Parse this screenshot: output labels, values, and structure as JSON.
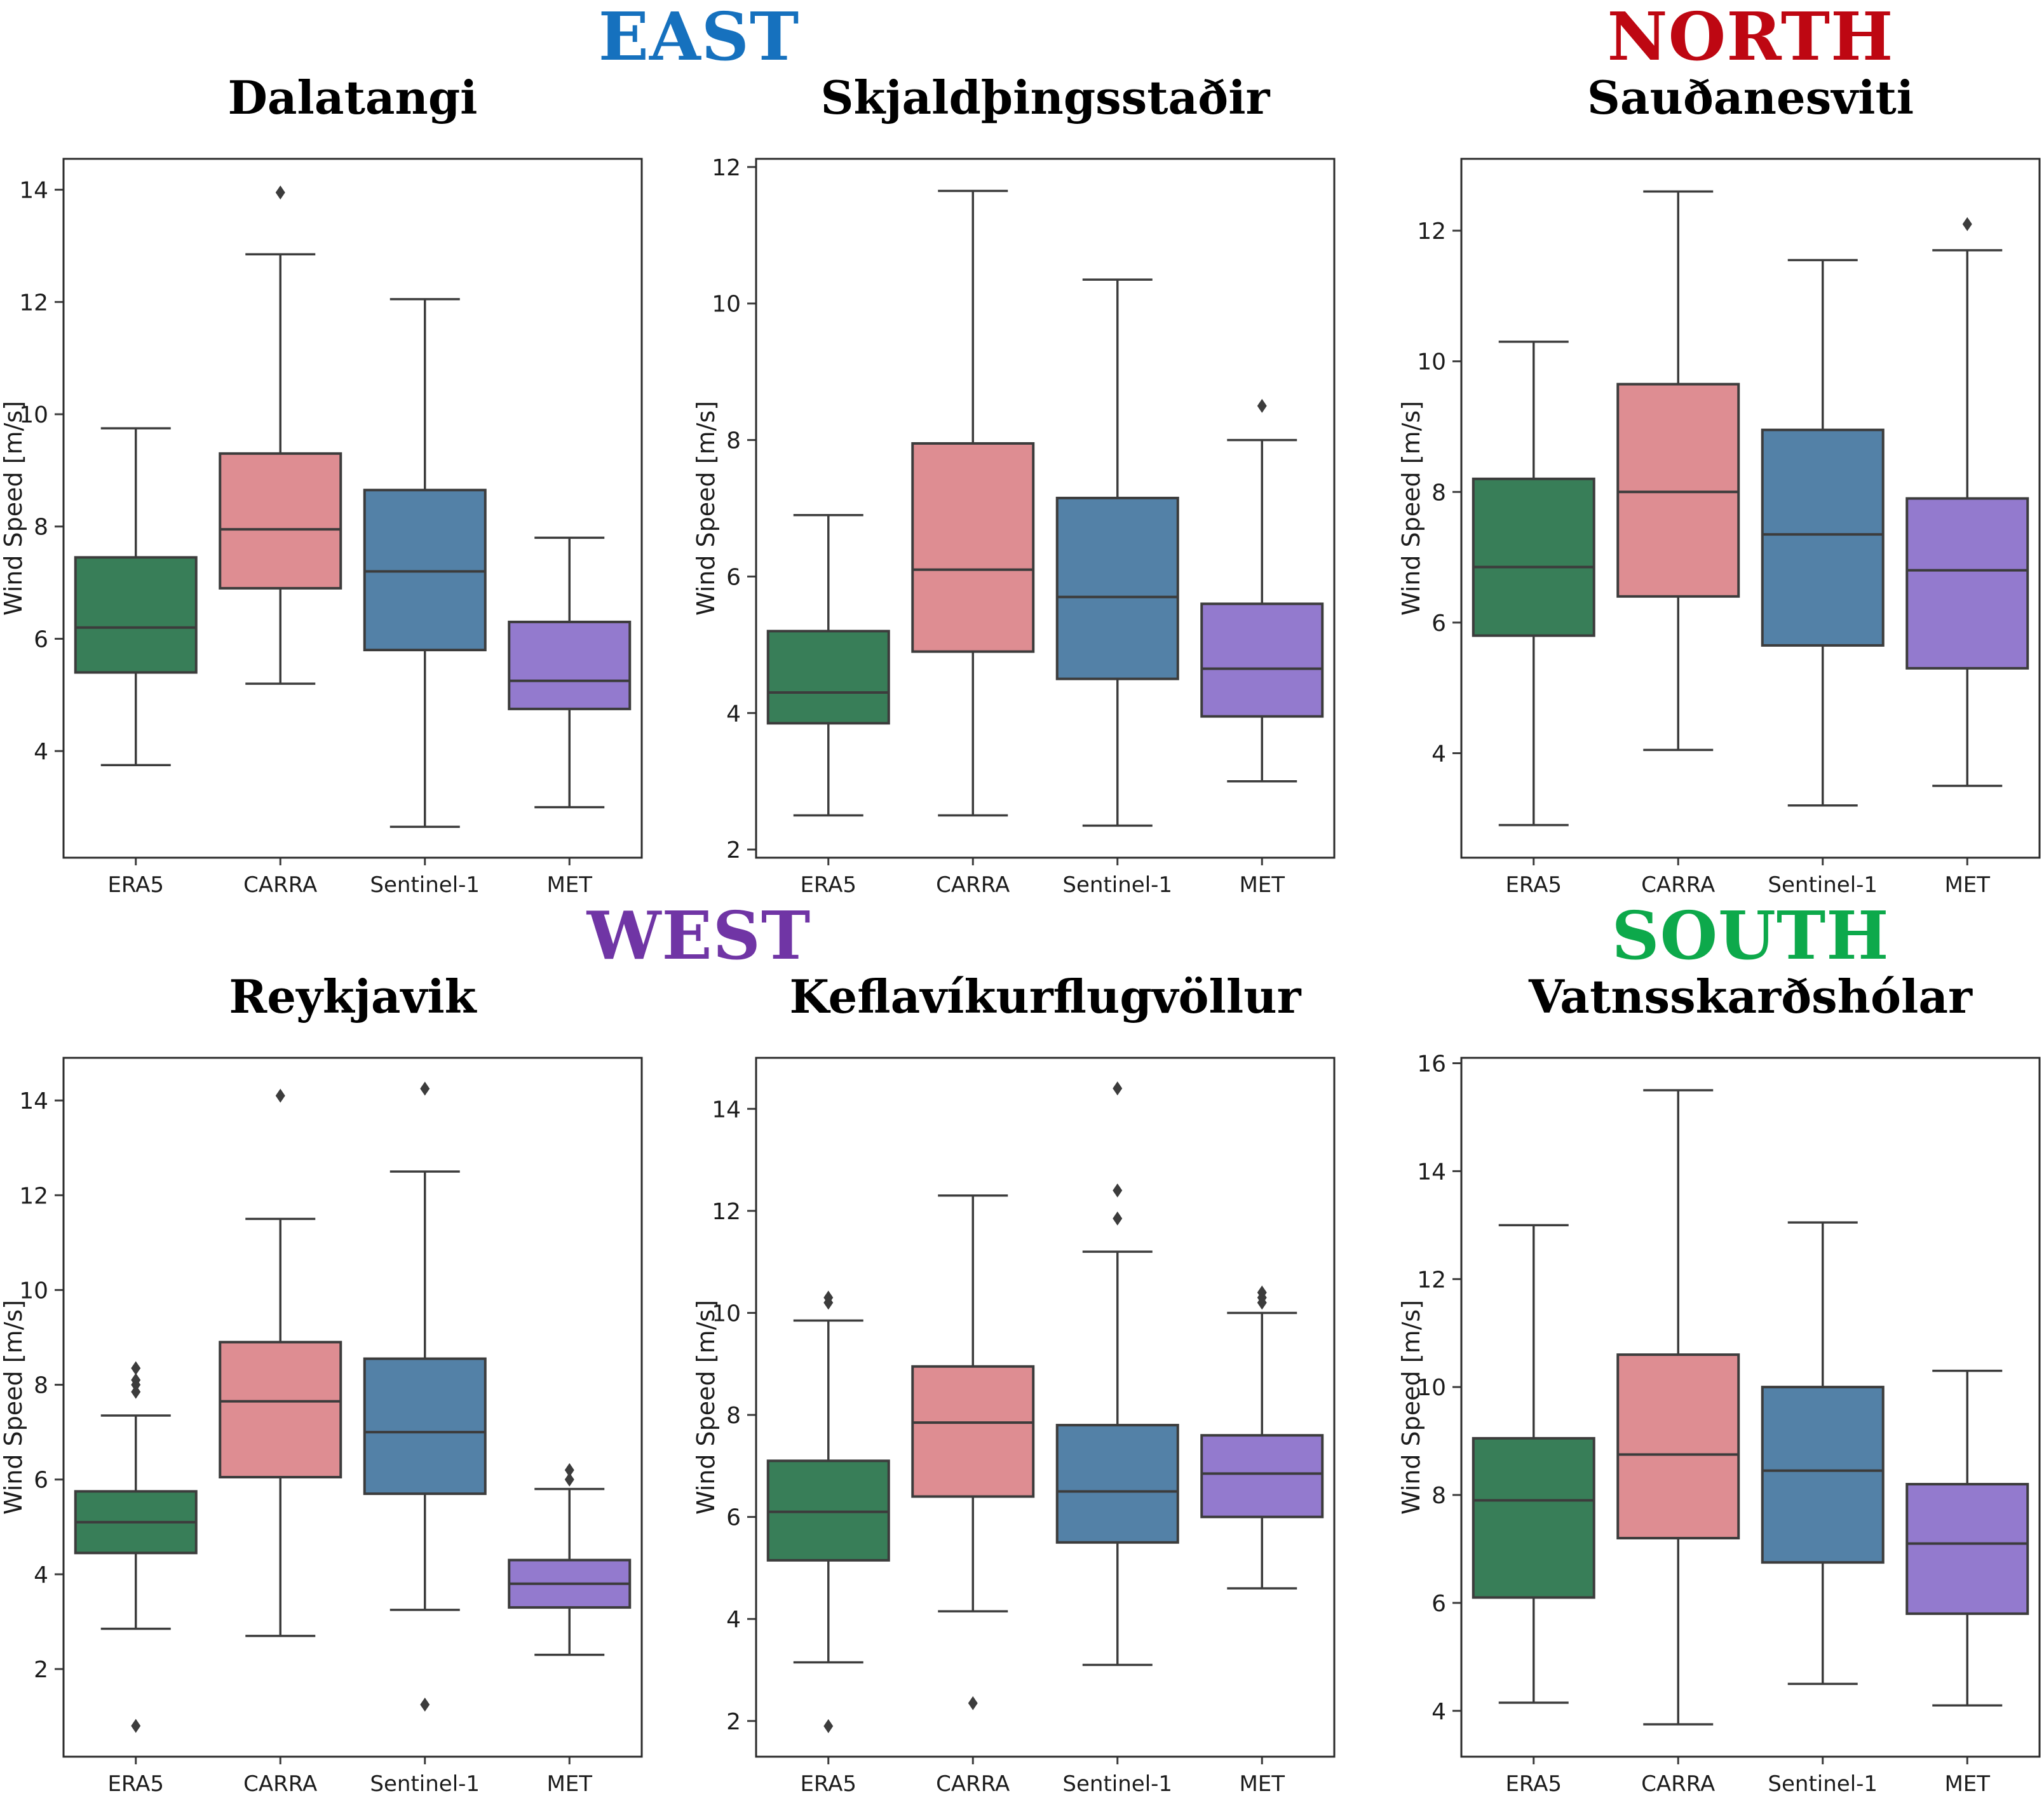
{
  "regions": [
    {
      "label": "EAST",
      "color": "#1671BE"
    },
    {
      "label": "NORTH",
      "color": "#BE0712"
    },
    {
      "label": "WEST",
      "color": "#7035A5"
    },
    {
      "label": "SOUTH",
      "color": "#0DA94B"
    }
  ],
  "styles": {
    "box_edge_color": "#3C3C3C",
    "axes_frame_color": "#2B2B2B",
    "background": "#FFFFFF"
  },
  "chart_data": [
    {
      "type": "box",
      "title": "Dalatangi",
      "region": "EAST",
      "ylabel": "Wind Speed [m/s]",
      "ylim": [
        2.1,
        14.55
      ],
      "yticks": [
        4,
        6,
        8,
        10,
        12,
        14
      ],
      "grid": false,
      "categories": [
        "ERA5",
        "CARRA",
        "Sentinel-1",
        "MET"
      ],
      "series": [
        {
          "name": "ERA5",
          "color": "#387E58",
          "whislo": 3.75,
          "q1": 5.4,
          "med": 6.2,
          "q3": 7.45,
          "whishi": 9.75,
          "outliers": []
        },
        {
          "name": "CARRA",
          "color": "#DE8D92",
          "whislo": 5.2,
          "q1": 6.9,
          "med": 7.95,
          "q3": 9.3,
          "whishi": 12.85,
          "outliers": [
            13.95
          ]
        },
        {
          "name": "Sentinel-1",
          "color": "#5381A7",
          "whislo": 2.65,
          "q1": 5.8,
          "med": 7.2,
          "q3": 8.65,
          "whishi": 12.05,
          "outliers": []
        },
        {
          "name": "MET",
          "color": "#937ACE",
          "whislo": 3.0,
          "q1": 4.75,
          "med": 5.25,
          "q3": 6.3,
          "whishi": 7.8,
          "outliers": []
        }
      ]
    },
    {
      "type": "box",
      "title": "Skjaldþingsstaðir",
      "region": "EAST",
      "ylabel": "Wind Speed [m/s]",
      "ylim": [
        1.88,
        12.12
      ],
      "yticks": [
        2,
        4,
        6,
        8,
        10,
        12
      ],
      "grid": false,
      "categories": [
        "ERA5",
        "CARRA",
        "Sentinel-1",
        "MET"
      ],
      "series": [
        {
          "name": "ERA5",
          "color": "#387E58",
          "whislo": 2.5,
          "q1": 3.85,
          "med": 4.3,
          "q3": 5.2,
          "whishi": 6.9,
          "outliers": []
        },
        {
          "name": "CARRA",
          "color": "#DE8D92",
          "whislo": 2.5,
          "q1": 4.9,
          "med": 6.1,
          "q3": 7.95,
          "whishi": 11.65,
          "outliers": []
        },
        {
          "name": "Sentinel-1",
          "color": "#5381A7",
          "whislo": 2.35,
          "q1": 4.5,
          "med": 5.7,
          "q3": 7.15,
          "whishi": 10.35,
          "outliers": []
        },
        {
          "name": "MET",
          "color": "#937ACE",
          "whislo": 3.0,
          "q1": 3.95,
          "med": 4.65,
          "q3": 5.6,
          "whishi": 8.0,
          "outliers": [
            8.5
          ]
        }
      ]
    },
    {
      "type": "box",
      "title": "Sauðanesviti",
      "region": "NORTH",
      "ylabel": "Wind Speed [m/s]",
      "ylim": [
        2.4,
        13.1
      ],
      "yticks": [
        4,
        6,
        8,
        10,
        12
      ],
      "grid": false,
      "categories": [
        "ERA5",
        "CARRA",
        "Sentinel-1",
        "MET"
      ],
      "series": [
        {
          "name": "ERA5",
          "color": "#387E58",
          "whislo": 2.9,
          "q1": 5.8,
          "med": 6.85,
          "q3": 8.2,
          "whishi": 10.3,
          "outliers": []
        },
        {
          "name": "CARRA",
          "color": "#DE8D92",
          "whislo": 4.05,
          "q1": 6.4,
          "med": 8.0,
          "q3": 9.65,
          "whishi": 12.6,
          "outliers": []
        },
        {
          "name": "Sentinel-1",
          "color": "#5381A7",
          "whislo": 3.2,
          "q1": 5.65,
          "med": 7.35,
          "q3": 8.95,
          "whishi": 11.55,
          "outliers": []
        },
        {
          "name": "MET",
          "color": "#937ACE",
          "whislo": 3.5,
          "q1": 5.3,
          "med": 6.8,
          "q3": 7.9,
          "whishi": 11.7,
          "outliers": [
            12.1
          ]
        }
      ]
    },
    {
      "type": "box",
      "title": "Reykjavik",
      "region": "WEST",
      "ylabel": "Wind Speed [m/s]",
      "ylim": [
        0.15,
        14.9
      ],
      "yticks": [
        2,
        4,
        6,
        8,
        10,
        12,
        14
      ],
      "grid": false,
      "categories": [
        "ERA5",
        "CARRA",
        "Sentinel-1",
        "MET"
      ],
      "series": [
        {
          "name": "ERA5",
          "color": "#387E58",
          "whislo": 2.85,
          "q1": 4.45,
          "med": 5.1,
          "q3": 5.75,
          "whishi": 7.35,
          "outliers": [
            0.8,
            7.85,
            8.0,
            8.1,
            8.35
          ]
        },
        {
          "name": "CARRA",
          "color": "#DE8D92",
          "whislo": 2.7,
          "q1": 6.05,
          "med": 7.65,
          "q3": 8.9,
          "whishi": 11.5,
          "outliers": [
            14.1
          ]
        },
        {
          "name": "Sentinel-1",
          "color": "#5381A7",
          "whislo": 3.25,
          "q1": 5.7,
          "med": 7.0,
          "q3": 8.55,
          "whishi": 12.5,
          "outliers": [
            1.25,
            14.25
          ]
        },
        {
          "name": "MET",
          "color": "#937ACE",
          "whislo": 2.3,
          "q1": 3.3,
          "med": 3.8,
          "q3": 4.3,
          "whishi": 5.8,
          "outliers": [
            6.0,
            6.2
          ]
        }
      ]
    },
    {
      "type": "box",
      "title": "Keflavíkurflugvöllur",
      "region": "WEST",
      "ylabel": "Wind Speed [m/s]",
      "ylim": [
        1.3,
        15.0
      ],
      "yticks": [
        2,
        4,
        6,
        8,
        10,
        12,
        14
      ],
      "grid": false,
      "categories": [
        "ERA5",
        "CARRA",
        "Sentinel-1",
        "MET"
      ],
      "series": [
        {
          "name": "ERA5",
          "color": "#387E58",
          "whislo": 3.15,
          "q1": 5.15,
          "med": 6.1,
          "q3": 7.1,
          "whishi": 9.85,
          "outliers": [
            1.9,
            10.2,
            10.3
          ]
        },
        {
          "name": "CARRA",
          "color": "#DE8D92",
          "whislo": 4.15,
          "q1": 6.4,
          "med": 7.85,
          "q3": 8.95,
          "whishi": 12.3,
          "outliers": [
            2.35
          ]
        },
        {
          "name": "Sentinel-1",
          "color": "#5381A7",
          "whislo": 3.1,
          "q1": 5.5,
          "med": 6.5,
          "q3": 7.8,
          "whishi": 11.2,
          "outliers": [
            11.85,
            12.4,
            14.4
          ]
        },
        {
          "name": "MET",
          "color": "#937ACE",
          "whislo": 4.6,
          "q1": 6.0,
          "med": 6.85,
          "q3": 7.6,
          "whishi": 10.0,
          "outliers": [
            10.2,
            10.3,
            10.4
          ]
        }
      ]
    },
    {
      "type": "box",
      "title": "Vatnsskarðshólar",
      "region": "SOUTH",
      "ylabel": "Wind Speed [m/s]",
      "ylim": [
        3.15,
        16.1
      ],
      "yticks": [
        4,
        6,
        8,
        10,
        12,
        14,
        16
      ],
      "grid": false,
      "categories": [
        "ERA5",
        "CARRA",
        "Sentinel-1",
        "MET"
      ],
      "series": [
        {
          "name": "ERA5",
          "color": "#387E58",
          "whislo": 4.15,
          "q1": 6.1,
          "med": 7.9,
          "q3": 9.05,
          "whishi": 13.0,
          "outliers": []
        },
        {
          "name": "CARRA",
          "color": "#DE8D92",
          "whislo": 3.75,
          "q1": 7.2,
          "med": 8.75,
          "q3": 10.6,
          "whishi": 15.5,
          "outliers": []
        },
        {
          "name": "Sentinel-1",
          "color": "#5381A7",
          "whislo": 4.5,
          "q1": 6.75,
          "med": 8.45,
          "q3": 10.0,
          "whishi": 13.05,
          "outliers": []
        },
        {
          "name": "MET",
          "color": "#937ACE",
          "whislo": 4.1,
          "q1": 5.8,
          "med": 7.1,
          "q3": 8.2,
          "whishi": 10.3,
          "outliers": []
        }
      ]
    }
  ]
}
